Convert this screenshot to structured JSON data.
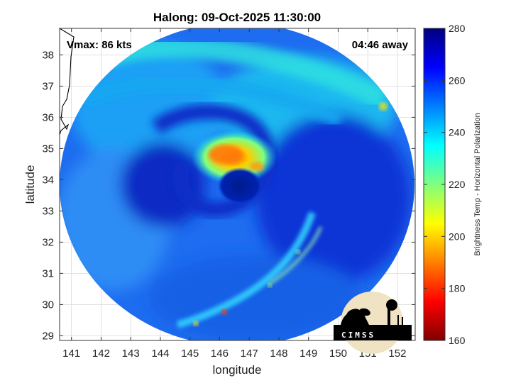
{
  "chart_data": {
    "type": "heatmap",
    "title": "Halong: 09-Oct-2025 11:30:00",
    "xlabel": "longitude",
    "ylabel": "latitude",
    "xlim": [
      140.6,
      152.6
    ],
    "ylim": [
      28.85,
      38.85
    ],
    "xticks": [
      "141",
      "142",
      "143",
      "144",
      "145",
      "146",
      "147",
      "148",
      "149",
      "150",
      "151",
      "152"
    ],
    "yticks": [
      "38",
      "37",
      "36",
      "35",
      "34",
      "33",
      "32",
      "31",
      "30",
      "29"
    ],
    "grid": true,
    "annotations": {
      "vmax": "Vmax: 86 kts",
      "away": "04:46 away"
    },
    "colorbar": {
      "label": "Brightness Temp - Horizontal Polarization",
      "range": [
        160,
        280
      ],
      "ticks": [
        "280",
        "260",
        "240",
        "220",
        "200",
        "180",
        "160"
      ],
      "colormap": "jet",
      "colors": [
        "#7f0000",
        "#ff0000",
        "#ff7f00",
        "#ffff00",
        "#7fff7f",
        "#00ffff",
        "#007fff",
        "#0000ff",
        "#00007f"
      ]
    },
    "storm": {
      "eye_lon": 146.8,
      "eye_lat": 33.9,
      "eyewall_peak_bt": 190,
      "eye_bt": 262
    },
    "swath_center": {
      "lon": 146.6,
      "lat": 33.8
    },
    "coastline_lon": 140.9,
    "logo": "CIMSS"
  }
}
